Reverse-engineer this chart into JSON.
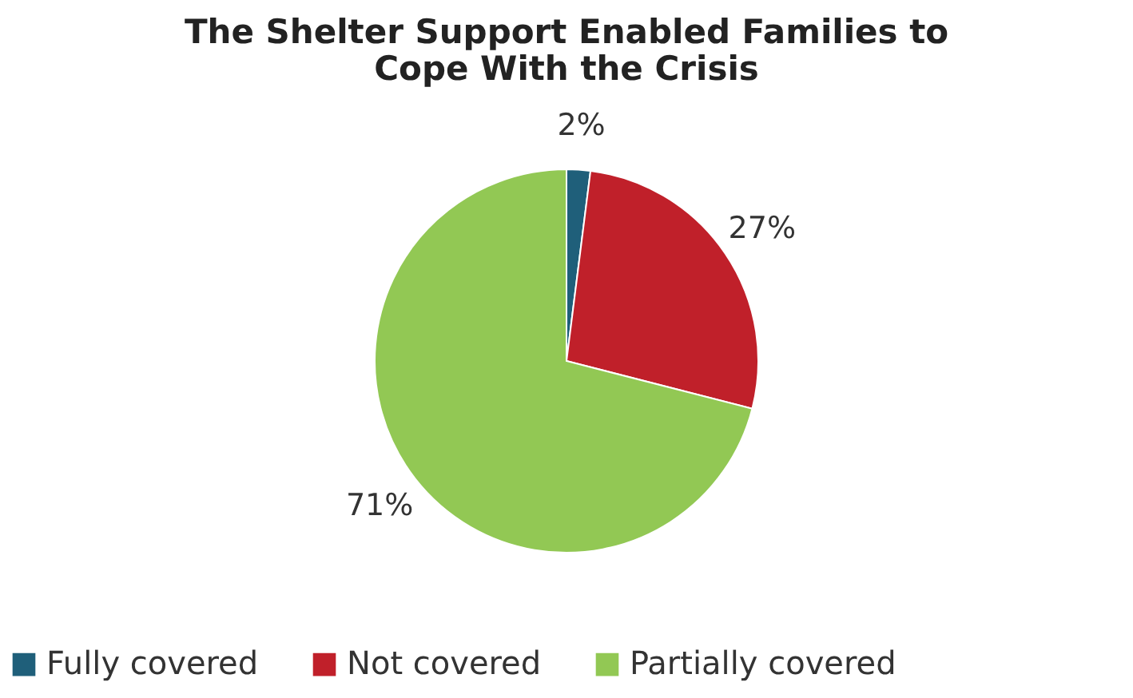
{
  "chart_data": {
    "type": "pie",
    "title": "The Shelter Support Enabled Families to Cope With the Crisis",
    "categories": [
      "Fully covered",
      "Not covered",
      "Partially covered"
    ],
    "values": [
      2,
      27,
      71
    ],
    "colors": [
      "#1f5f7a",
      "#c0202a",
      "#92c854"
    ],
    "value_labels": [
      "2%",
      "27%",
      "71%"
    ],
    "legend": "bottom"
  }
}
